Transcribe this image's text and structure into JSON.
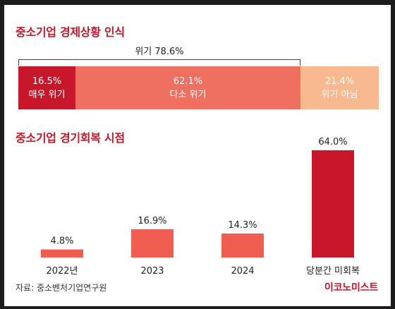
{
  "header": {
    "title_1": "중소기업 경제상황 인식",
    "title_2": "중소기업 경기회복 시점"
  },
  "perception": {
    "bracket_label": "위기 78.6%",
    "segments": [
      {
        "value": "16.5%",
        "label": "매우 위기",
        "pct": 16.5,
        "color": "#c8172a"
      },
      {
        "value": "62.1%",
        "label": "다소 위기",
        "pct": 62.1,
        "color": "#ef6f61"
      },
      {
        "value": "21.4%",
        "label": "위기 아님",
        "pct": 21.4,
        "color": "#f8b890"
      }
    ]
  },
  "chart_data": [
    {
      "type": "bar",
      "title": "중소기업 경제상황 인식",
      "categories": [
        "매우 위기",
        "다소 위기",
        "위기 아님"
      ],
      "values": [
        16.5,
        62.1,
        21.4
      ],
      "annotation": "위기 78.6%"
    },
    {
      "type": "bar",
      "title": "중소기업 경기회복 시점",
      "categories": [
        "2022년",
        "2023",
        "2024",
        "당분간 미회복"
      ],
      "values": [
        4.8,
        16.9,
        14.3,
        64.0
      ],
      "value_labels": [
        "4.8%",
        "16.9%",
        "14.3%",
        "64.0%"
      ],
      "colors": [
        "#ef5d50",
        "#ef5d50",
        "#ef5d50",
        "#c8172a"
      ],
      "ylim": [
        0,
        64.0
      ]
    }
  ],
  "footer": {
    "source": "자료: 중소벤처기업연구원",
    "logo": "이코노미스트"
  }
}
